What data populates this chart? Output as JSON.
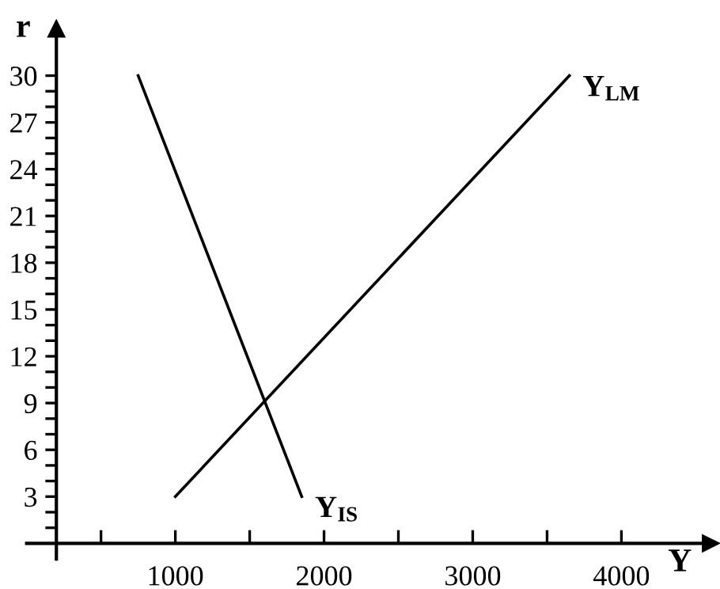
{
  "chart_data": {
    "type": "line",
    "xlabel": "Y",
    "ylabel": "r",
    "series": [
      {
        "color": "#000000",
        "x": [
          750,
          1850
        ],
        "values": [
          30,
          3
        ]
      },
      {
        "color": "#000000",
        "x": [
          1000,
          3650
        ],
        "values": [
          3,
          30
        ]
      }
    ],
    "annotations": [
      {
        "text": "Y$_{LM}$",
        "x": 3650,
        "y": 30
      },
      {
        "text": "Y$_{IS}$",
        "x": 1850,
        "y": 3
      }
    ],
    "xlim": [
      0,
      4600
    ],
    "ylim": [
      -1,
      33
    ],
    "xticks": [
      {
        "value": 500,
        "label": null
      },
      1000,
      {
        "value": 1500,
        "label": null
      },
      2000,
      {
        "value": 2500,
        "label": null
      },
      3000,
      {
        "value": 3500,
        "label": null
      },
      4000
    ],
    "yticks": [
      {
        "value": 1,
        "label": null
      },
      {
        "value": 2,
        "label": null
      },
      3,
      {
        "value": 4,
        "label": null
      },
      {
        "value": 5,
        "label": null
      },
      6,
      {
        "value": 7,
        "label": null
      },
      {
        "value": 8,
        "label": null
      },
      9,
      {
        "value": 10,
        "label": null
      },
      {
        "value": 11,
        "label": null
      },
      12,
      {
        "value": 13,
        "label": null
      },
      {
        "value": 14,
        "label": null
      },
      15,
      {
        "value": 16,
        "label": null
      },
      {
        "value": 17,
        "label": null
      },
      18,
      {
        "value": 19,
        "label": null
      },
      {
        "value": 20,
        "label": null
      },
      21,
      {
        "value": 22,
        "label": null
      },
      {
        "value": 23,
        "label": null
      },
      24,
      {
        "value": 25,
        "label": null
      },
      {
        "value": 26,
        "label": null
      },
      27,
      {
        "value": 28,
        "label": null
      },
      {
        "value": 29,
        "label": null
      },
      30
    ],
    "grid": false,
    "legend": false,
    "marker": "none",
    "line_style": "solid"
  }
}
